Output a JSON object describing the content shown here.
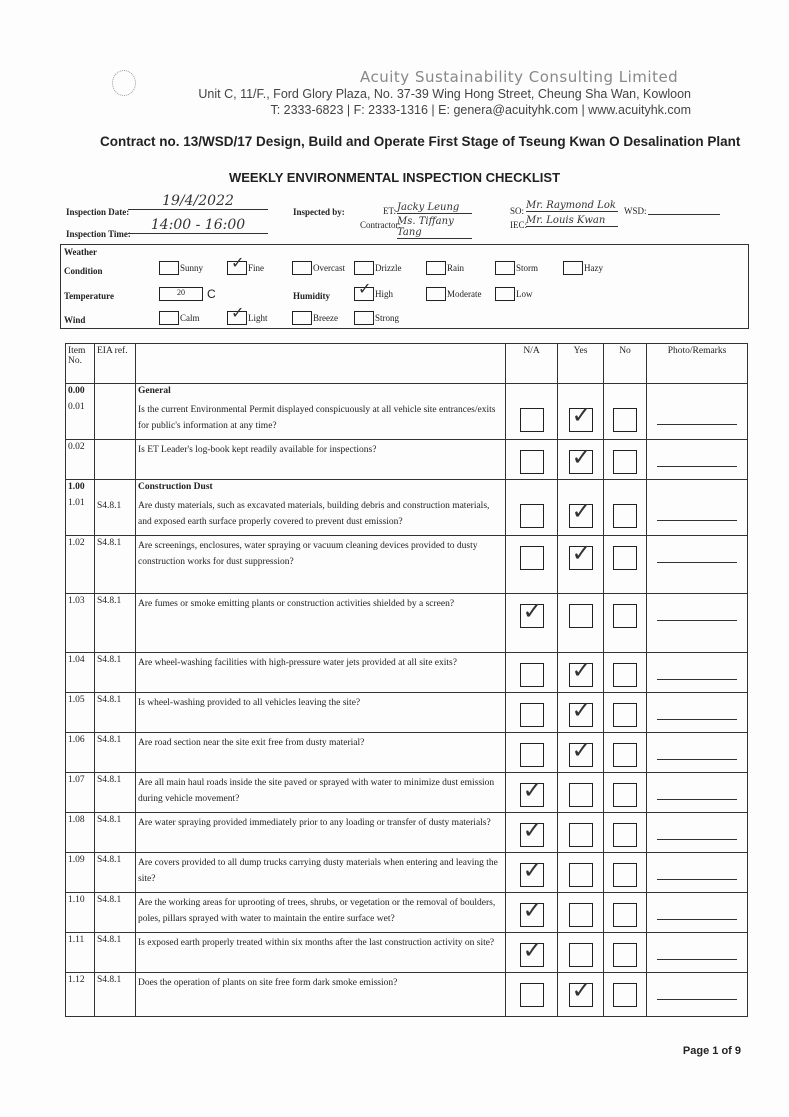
{
  "header": {
    "company": "Acuity Sustainability Consulting Limited",
    "address": "Unit C, 11/F., Ford Glory Plaza, No. 37-39 Wing Hong Street, Cheung Sha Wan, Kowloon",
    "contact": "T: 2333-6823 | F: 2333-1316 | E: genera@acuityhk.com | www.acuityhk.com",
    "contract": "Contract no.  13/WSD/17 Design, Build and Operate First Stage of Tseung Kwan O Desalination Plant",
    "title": "WEEKLY ENVIRONMENTAL INSPECTION CHECKLIST"
  },
  "info": {
    "date_label": "Inspection Date:",
    "date": "19/4/2022",
    "time_label": "Inspection Time:",
    "time": "14:00 - 16:00",
    "inspected_by_label": "Inspected by:",
    "et_label": "ET:",
    "et": "Jacky Leung",
    "contractor_label": "Contractor:",
    "contractor": "Ms. Tiffany Tang",
    "so_label": "SO:",
    "so": "Mr. Raymond Lok",
    "iec_label": "IEC:",
    "iec": "Mr. Louis Kwan",
    "wsd_label": "WSD:",
    "wsd": ""
  },
  "weather": {
    "heading": "Weather",
    "condition_label": "Condition",
    "conditions": [
      {
        "label": "Sunny",
        "checked": false
      },
      {
        "label": "Fine",
        "checked": true
      },
      {
        "label": "Overcast",
        "checked": false
      },
      {
        "label": "Drizzle",
        "checked": false
      },
      {
        "label": "Rain",
        "checked": false
      },
      {
        "label": "Storm",
        "checked": false
      },
      {
        "label": "Hazy",
        "checked": false
      }
    ],
    "temperature_label": "Temperature",
    "temperature": "20",
    "temperature_unit": "C",
    "humidity_label": "Humidity",
    "humidity": [
      {
        "label": "High",
        "checked": true
      },
      {
        "label": "Moderate",
        "checked": false
      },
      {
        "label": "Low",
        "checked": false
      }
    ],
    "wind_label": "Wind",
    "wind": [
      {
        "label": "Calm",
        "checked": false
      },
      {
        "label": "Light",
        "checked": true
      },
      {
        "label": "Breeze",
        "checked": false
      },
      {
        "label": "Strong",
        "checked": false
      }
    ]
  },
  "table": {
    "headers": [
      "Item No.",
      "EIA ref.",
      "",
      "N/A",
      "Yes",
      "No",
      "Photo/Remarks"
    ],
    "rows": [
      {
        "item": "0.00",
        "eia": "",
        "text": "General",
        "heading": true,
        "h": 0
      },
      {
        "item": "0.01",
        "eia": "",
        "text": "Is the current Environmental Permit displayed conspicuously at all vehicle site entrances/exits for public's information at any time?",
        "check": "Yes",
        "h": 38
      },
      {
        "item": "0.02",
        "eia": "",
        "text": "Is ET Leader's log-book kept readily available for inspections?",
        "check": "Yes",
        "h": 39
      },
      {
        "item": "1.00",
        "eia": "",
        "text": "Construction Dust",
        "heading": true,
        "h": 0
      },
      {
        "item": "1.01",
        "eia": "S4.8.1",
        "text": "Are dusty materials, such as excavated materials, building debris and construction materials, and exposed earth surface properly covered to prevent dust emission?",
        "check": "Yes",
        "h": 38
      },
      {
        "item": "1.02",
        "eia": "S4.8.1",
        "text": "Are screenings, enclosures, water spraying or vacuum cleaning devices provided to dusty construction works for dust suppression?",
        "check": "Yes",
        "h": 58
      },
      {
        "item": "1.03",
        "eia": "S4.8.1",
        "text": "Are fumes or smoke emitting plants or construction activities shielded by a screen?",
        "check": "N/A",
        "h": 59
      },
      {
        "item": "1.04",
        "eia": "S4.8.1",
        "text": "Are wheel-washing facilities with high-pressure water jets provided at all site exits?",
        "check": "Yes",
        "h": 37
      },
      {
        "item": "1.05",
        "eia": "S4.8.1",
        "text": "Is wheel-washing provided to all vehicles leaving the site?",
        "check": "Yes",
        "h": 36
      },
      {
        "item": "1.06",
        "eia": "S4.8.1",
        "text": "Are road section near the site exit free from dusty material?",
        "check": "Yes",
        "h": 35
      },
      {
        "item": "1.07",
        "eia": "S4.8.1",
        "text": "Are all main haul roads inside the site paved or sprayed with water to minimize dust emission during vehicle movement?",
        "check": "N/A",
        "h": 38
      },
      {
        "item": "1.08",
        "eia": "S4.8.1",
        "text": "Are water spraying provided immediately prior to any loading or transfer of dusty materials?",
        "check": "N/A",
        "h": 36
      },
      {
        "item": "1.09",
        "eia": "S4.8.1",
        "text": "Are covers provided to all dump trucks carrying dusty materials when entering and leaving the site?",
        "check": "N/A",
        "h": 37
      },
      {
        "item": "1.10",
        "eia": "S4.8.1",
        "text": "Are the working areas for uprooting of trees, shrubs, or vegetation or the removal of boulders, poles, pillars sprayed with water to maintain the entire surface wet?",
        "check": "N/A",
        "h": 37
      },
      {
        "item": "1.11",
        "eia": "S4.8.1",
        "text": "Is exposed earth properly treated within six months after the last construction activity on site?",
        "check": "N/A",
        "h": 38
      },
      {
        "item": "1.12",
        "eia": "S4.8.1",
        "text": "Does the operation of plants on site free form dark smoke emission?",
        "check": "Yes",
        "h": 44
      }
    ]
  },
  "footer": {
    "page": "Page 1 of 9"
  }
}
